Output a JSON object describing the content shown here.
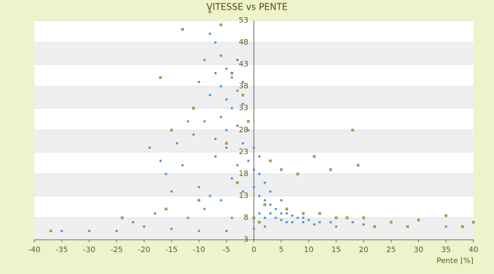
{
  "chart_data": {
    "type": "scatter",
    "title": "VITESSE vs PENTE",
    "x_label": "Pente [%]",
    "xlim": [
      -40,
      40
    ],
    "xticks": [
      -40,
      -35,
      -30,
      -25,
      -20,
      -15,
      -10,
      -5,
      0,
      5,
      10,
      15,
      20,
      25,
      30,
      35,
      40
    ],
    "ylim": [
      3,
      53
    ],
    "yticks": [
      53,
      48,
      43,
      38,
      33,
      28,
      23,
      18,
      13,
      8,
      3
    ],
    "grid": true,
    "series": [
      {
        "color": "#3d8fd6",
        "x": [
          -8,
          -7,
          -6,
          -9,
          -5,
          -4,
          -7,
          -6,
          -3,
          -8,
          -10,
          -5,
          -4,
          -2,
          -6,
          -9,
          -3,
          -1,
          -12,
          -14,
          -11,
          -7,
          -5,
          -2,
          0,
          -1,
          -3,
          0,
          1,
          -4,
          -13,
          -16,
          -15,
          -10,
          -8,
          -6,
          -2,
          0,
          1,
          2,
          3,
          4,
          5,
          6,
          7,
          8,
          9,
          10,
          12,
          14,
          3,
          4,
          5,
          6,
          2,
          1,
          7,
          9,
          11,
          15,
          2,
          -20,
          -25,
          -15,
          -10,
          -5,
          0,
          -30,
          -35,
          -22,
          -18,
          -12,
          -19,
          -17,
          -9,
          -4,
          35,
          -7,
          -5,
          -3,
          -2,
          1,
          2,
          3,
          5,
          18,
          20
        ],
        "values": [
          50,
          48,
          45,
          44,
          42,
          40,
          41,
          38,
          37,
          36,
          39,
          35,
          33,
          34,
          31,
          30,
          29,
          28,
          30,
          25,
          27,
          26,
          24,
          25,
          24,
          21,
          20,
          19,
          18,
          17,
          20,
          18,
          14,
          15,
          13,
          12,
          14,
          15,
          13,
          12,
          11,
          10,
          9,
          9,
          8.5,
          8,
          8,
          7.5,
          7,
          7,
          9,
          8,
          7.5,
          7,
          8,
          9,
          7,
          7,
          6.5,
          6,
          6,
          6,
          5,
          5.5,
          5,
          5,
          5.5,
          5,
          5,
          7,
          9,
          8,
          24,
          21,
          10,
          8,
          6,
          22,
          28,
          44,
          39,
          22,
          16,
          14,
          12,
          7,
          6.5
        ]
      },
      {
        "color": "#c8b432",
        "x": [
          -8,
          -6,
          -13,
          -17,
          -4,
          -2,
          -1,
          -11,
          -15,
          -5,
          3,
          5,
          8,
          11,
          18,
          19,
          14,
          2,
          6,
          9,
          12,
          15,
          20,
          25,
          30,
          35,
          40,
          22,
          28,
          38,
          -37,
          -24,
          -16,
          -10,
          -3,
          0,
          1,
          17
        ],
        "values": [
          55,
          52,
          51,
          40,
          41,
          36,
          30,
          33,
          28,
          25,
          21,
          19,
          18,
          22,
          28,
          20,
          19,
          11,
          10,
          9,
          9,
          8,
          8,
          7,
          7.5,
          8.5,
          7,
          6,
          6,
          6,
          5,
          8,
          10,
          12,
          16,
          8,
          7,
          8
        ]
      }
    ]
  }
}
